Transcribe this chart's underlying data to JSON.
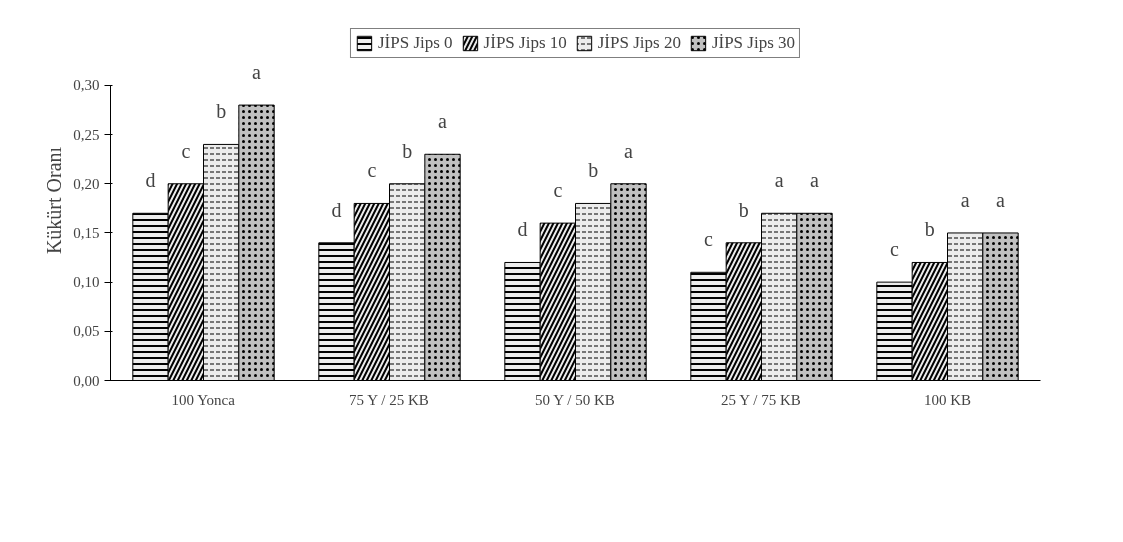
{
  "chart_data": {
    "type": "bar",
    "ylabel": "Kükürt Oranı",
    "categories": [
      "100 Yonca",
      "75 Y / 25 KB",
      "50 Y / 50 KB",
      "25 Y / 75 KB",
      "100 KB"
    ],
    "series": [
      {
        "name": "JİPS Jips 0",
        "color": "#ececec",
        "values": [
          0.17,
          0.14,
          0.12,
          0.11,
          0.1
        ],
        "value_labels": [
          "d",
          "d",
          "d",
          "c",
          "c"
        ]
      },
      {
        "name": "JİPS Jips 10",
        "color": "#ececec",
        "values": [
          0.2,
          0.18,
          0.16,
          0.14,
          0.12
        ],
        "value_labels": [
          "c",
          "c",
          "c",
          "b",
          "b"
        ]
      },
      {
        "name": "JİPS Jips 20",
        "color": "#ececec",
        "values": [
          0.24,
          0.2,
          0.18,
          0.17,
          0.15
        ],
        "value_labels": [
          "b",
          "b",
          "b",
          "a",
          "a"
        ]
      },
      {
        "name": "JİPS Jips 30",
        "color": "#c0c0c0",
        "values": [
          0.28,
          0.23,
          0.2,
          0.17,
          0.15
        ],
        "value_labels": [
          "a",
          "a",
          "a",
          "a",
          "a"
        ]
      }
    ],
    "ylim": [
      0,
      0.3
    ],
    "yticks": [
      {
        "value": 0,
        "label": "0,00"
      },
      {
        "value": 0.05,
        "label": "0,05"
      },
      {
        "value": 0.1,
        "label": "0,10"
      },
      {
        "value": 0.15,
        "label": "0,15"
      },
      {
        "value": 0.2,
        "label": "0,20"
      },
      {
        "value": 0.25,
        "label": "0,25"
      },
      {
        "value": 0.3,
        "label": "0,30"
      }
    ],
    "grid": false,
    "legend": "top"
  }
}
